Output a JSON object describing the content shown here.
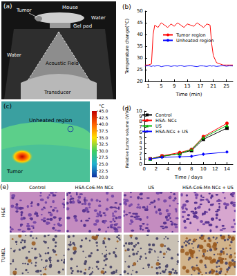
{
  "chart_data": [
    {
      "type": "line",
      "title": "(b)",
      "xlabel": "Time (min)",
      "ylabel": "Temperature change(°C)",
      "x": [
        0,
        1,
        2,
        2.5,
        3,
        4,
        5,
        6,
        7,
        8,
        9,
        10,
        11,
        12,
        13,
        14,
        15,
        16,
        17,
        18,
        19,
        20,
        20.5,
        21,
        22,
        23,
        24,
        25,
        26,
        27
      ],
      "series": [
        {
          "name": "Tumor region",
          "color": "#ff0000",
          "marker": "none",
          "line_style": "solid",
          "values": [
            27,
            27,
            27.5,
            40,
            44,
            43,
            45,
            44,
            43,
            44.5,
            43.5,
            45,
            44,
            43,
            44.5,
            44,
            43.5,
            45,
            44,
            43,
            44.5,
            44,
            36,
            31,
            28,
            27.5,
            27,
            27,
            27,
            27
          ]
        },
        {
          "name": "Unheated region",
          "color": "#0000ff",
          "marker": "none",
          "line_style": "solid",
          "values": [
            26.5,
            26.8,
            26.4,
            26.7,
            26.5,
            26.9,
            26.3,
            26.6,
            26.8,
            26.4,
            26.7,
            26.5,
            26.9,
            26.4,
            26.6,
            26.8,
            26.5,
            26.3,
            26.7,
            26.6,
            26.4,
            26.8,
            26.5,
            26.7,
            26.4,
            26.6,
            26.8,
            26.5,
            26.7,
            26.6
          ]
        }
      ],
      "xlim": [
        0,
        27
      ],
      "xticks": [
        1,
        5,
        9,
        13,
        17,
        21,
        25
      ],
      "ylim": [
        20,
        50
      ],
      "yticks": [
        20,
        25,
        30,
        35,
        40,
        45,
        50
      ],
      "grid": false,
      "legend": "center"
    },
    {
      "type": "line",
      "title": "(d)",
      "xlabel": "Time / days",
      "ylabel": "Relative tumor volume (V/V₀)",
      "x": [
        1,
        3,
        6,
        8,
        10,
        14
      ],
      "series": [
        {
          "name": "Control",
          "color": "#000000",
          "marker": "square",
          "line_style": "solid",
          "values": [
            1,
            1.5,
            2.0,
            2.6,
            4.7,
            6.8
          ]
        },
        {
          "name": "HSA- NCs",
          "color": "#ff0000",
          "marker": "circle",
          "line_style": "solid",
          "values": [
            1,
            1.6,
            2.2,
            2.8,
            5.2,
            7.7
          ]
        },
        {
          "name": "US",
          "color": "#00b000",
          "marker": "triangle",
          "line_style": "solid",
          "values": [
            1,
            1.5,
            2.0,
            2.8,
            5.0,
            7.3
          ]
        },
        {
          "name": "HSA-NCs + US",
          "color": "#0000ff",
          "marker": "diamond",
          "line_style": "solid",
          "values": [
            1,
            1.3,
            1.4,
            1.5,
            1.9,
            2.3
          ]
        }
      ],
      "xlim": [
        0,
        15
      ],
      "xticks": [
        0,
        2,
        4,
        6,
        8,
        10,
        12,
        14
      ],
      "ylim": [
        0,
        10
      ],
      "yticks": [
        0,
        1,
        2,
        3,
        4,
        5,
        6,
        7,
        8,
        9,
        10
      ],
      "grid": false,
      "legend": "top-left"
    }
  ],
  "panels": {
    "a": {
      "title": "(a)",
      "labels": [
        "Tumor",
        "Mouse",
        "Water",
        "Gel pad",
        "Water",
        "Acoustic Field",
        "Transducer"
      ]
    },
    "c": {
      "title": "(c)",
      "labels": [
        "Unheated region",
        "Tumor"
      ],
      "colorbar": {
        "label": "°C",
        "range": [
          20,
          45
        ],
        "ticks": [
          {
            "value": 45,
            "label": "45.0"
          },
          {
            "value": 42.5,
            "label": "42.5"
          },
          {
            "value": 40,
            "label": "40.0"
          },
          {
            "value": 37.5,
            "label": "37.5"
          },
          {
            "value": 35,
            "label": "35.0"
          },
          {
            "value": 32.5,
            "label": "32.5"
          },
          {
            "value": 30,
            "label": "30.0"
          },
          {
            "value": 27.5,
            "label": "27.5"
          },
          {
            "value": 25,
            "label": "25.0"
          },
          {
            "value": 22.5,
            "label": "22.5"
          },
          {
            "value": 20,
            "label": "20.0"
          }
        ]
      }
    },
    "e": {
      "title": "(e)",
      "columns": [
        "Control",
        "HSA-Ce6-Mn NCs",
        "US",
        "HSA-Ce6-Mn NCs + US"
      ],
      "rows": [
        "H&E",
        "TUNEL"
      ]
    }
  }
}
